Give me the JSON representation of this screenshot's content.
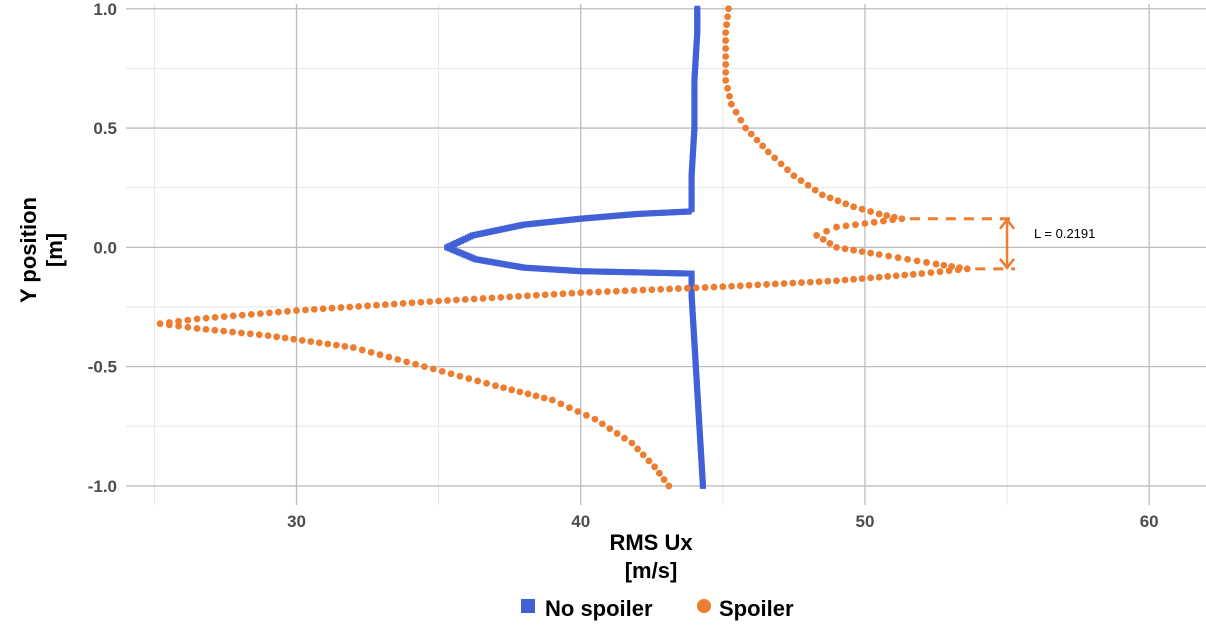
{
  "chart_data": {
    "type": "scatter",
    "xlabel": [
      "RMS Ux",
      "[m/s]"
    ],
    "ylabel": [
      "Y position",
      "[m]"
    ],
    "xlim": [
      24,
      62
    ],
    "ylim": [
      -1.08,
      1.02
    ],
    "x_ticks": [
      30,
      40,
      50,
      60
    ],
    "x_tick_labels": [
      "30",
      "40",
      "50",
      "60"
    ],
    "y_ticks": [
      -1.0,
      -0.5,
      0.0,
      0.5,
      1.0
    ],
    "y_tick_labels": [
      "-1.0",
      "-0.5",
      "0.0",
      "0.5",
      "1.0"
    ],
    "grid": true,
    "legend_position": "bottom",
    "series": [
      {
        "name": "No spoiler",
        "color": "#4361d6",
        "marker": "square",
        "points": [
          [
            44.3,
            -1.0
          ],
          [
            44.2,
            -0.8
          ],
          [
            44.1,
            -0.6
          ],
          [
            44.0,
            -0.4
          ],
          [
            43.9,
            -0.2
          ],
          [
            43.9,
            -0.12
          ],
          [
            43.9,
            -0.11
          ],
          [
            42.0,
            -0.105
          ],
          [
            40.0,
            -0.1
          ],
          [
            38.0,
            -0.085
          ],
          [
            36.3,
            -0.05
          ],
          [
            35.3,
            0.0
          ],
          [
            36.2,
            0.05
          ],
          [
            38.0,
            0.095
          ],
          [
            40.0,
            0.12
          ],
          [
            42.0,
            0.14
          ],
          [
            43.8,
            0.15
          ],
          [
            43.9,
            0.16
          ],
          [
            43.9,
            0.3
          ],
          [
            44.0,
            0.5
          ],
          [
            44.0,
            0.7
          ],
          [
            44.1,
            0.9
          ],
          [
            44.1,
            1.0
          ]
        ]
      },
      {
        "name": "Spoiler",
        "color": "#ed7d31",
        "marker": "circle",
        "points": [
          [
            45.2,
            1.0
          ],
          [
            45.1,
            0.9
          ],
          [
            45.1,
            0.8
          ],
          [
            45.1,
            0.7
          ],
          [
            45.3,
            0.6
          ],
          [
            45.8,
            0.5
          ],
          [
            46.6,
            0.4
          ],
          [
            47.5,
            0.3
          ],
          [
            48.5,
            0.22
          ],
          [
            49.6,
            0.17
          ],
          [
            50.5,
            0.14
          ],
          [
            51.3,
            0.12
          ],
          [
            50.0,
            0.1
          ],
          [
            49.0,
            0.085
          ],
          [
            48.3,
            0.05
          ],
          [
            49.0,
            0.0
          ],
          [
            50.5,
            -0.03
          ],
          [
            52.5,
            -0.07
          ],
          [
            53.6,
            -0.09
          ],
          [
            52.0,
            -0.11
          ],
          [
            49.0,
            -0.14
          ],
          [
            45.0,
            -0.165
          ],
          [
            40.0,
            -0.19
          ],
          [
            35.0,
            -0.225
          ],
          [
            30.0,
            -0.265
          ],
          [
            26.5,
            -0.3
          ],
          [
            25.2,
            -0.32
          ],
          [
            26.5,
            -0.34
          ],
          [
            29.0,
            -0.37
          ],
          [
            32.0,
            -0.42
          ],
          [
            34.5,
            -0.5
          ],
          [
            37.0,
            -0.58
          ],
          [
            39.0,
            -0.64
          ],
          [
            40.5,
            -0.72
          ],
          [
            41.8,
            -0.82
          ],
          [
            42.6,
            -0.92
          ],
          [
            43.1,
            -1.0
          ]
        ]
      }
    ],
    "annotation": {
      "label": "L = 0.2191",
      "y_top": 0.12,
      "y_bottom": -0.09,
      "x_from_top": 51.3,
      "x_from_bottom": 53.6,
      "x_arrow": 55.0,
      "color": "#ed7d31"
    }
  }
}
